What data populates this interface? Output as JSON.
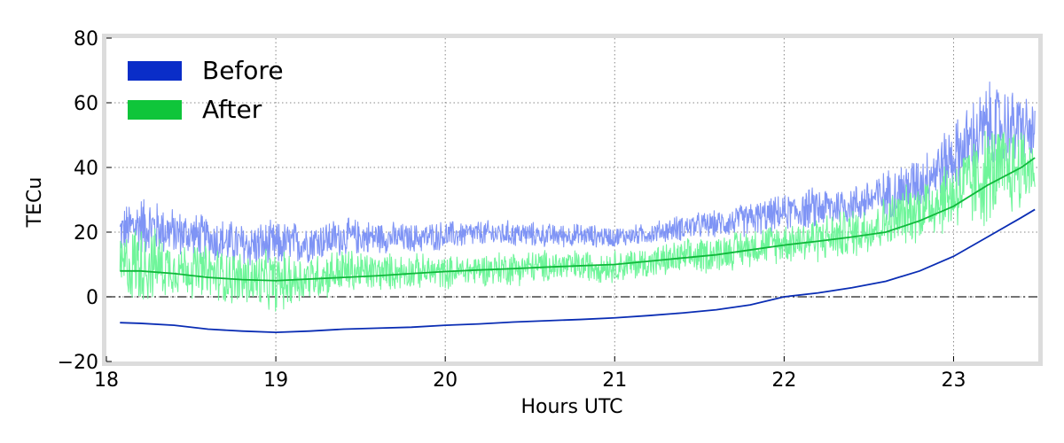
{
  "chart_data": {
    "type": "line",
    "title": "",
    "xlabel": "Hours UTC",
    "ylabel": "TECu",
    "xlim": [
      18,
      23.5
    ],
    "ylim": [
      -20,
      80
    ],
    "xticks": [
      18,
      19,
      20,
      21,
      22,
      23
    ],
    "yticks": [
      -20,
      0,
      20,
      40,
      60,
      80
    ],
    "xtick_labels": [
      "18",
      "19",
      "20",
      "21",
      "22",
      "23"
    ],
    "ytick_labels": [
      "−20",
      "0",
      "20",
      "40",
      "60",
      "80"
    ],
    "grid": true,
    "legend_position": "top-left",
    "reference_line": {
      "y": 0,
      "style": "dash-dot"
    },
    "colors": {
      "before_line": "#0a2db4",
      "before_band": "#7f94f5",
      "after_line": "#0fb93a",
      "after_band": "#6ff59a",
      "legend_before": "#0a2dc8",
      "legend_after": "#0fc53a",
      "frame": "#dcdcdc"
    },
    "series": [
      {
        "name": "Before",
        "color": "#0a2db4",
        "x": [
          18.08,
          18.2,
          18.4,
          18.6,
          18.8,
          19.0,
          19.2,
          19.4,
          19.6,
          19.8,
          20.0,
          20.2,
          20.4,
          20.6,
          20.8,
          21.0,
          21.2,
          21.4,
          21.6,
          21.8,
          22.0,
          22.2,
          22.4,
          22.6,
          22.8,
          23.0,
          23.2,
          23.4,
          23.48
        ],
        "values": [
          -8,
          -8.2,
          -8.8,
          -10,
          -10.6,
          -11,
          -10.6,
          -10,
          -9.7,
          -9.4,
          -8.8,
          -8.4,
          -7.8,
          -7.4,
          -7,
          -6.5,
          -5.8,
          -5,
          -4,
          -2.5,
          0,
          1.2,
          2.8,
          4.8,
          8,
          12.5,
          18.5,
          24.5,
          27
        ]
      },
      {
        "name": "After",
        "color": "#0fb93a",
        "x": [
          18.08,
          18.2,
          18.4,
          18.6,
          18.8,
          19.0,
          19.2,
          19.4,
          19.6,
          19.8,
          20.0,
          20.2,
          20.4,
          20.6,
          20.8,
          21.0,
          21.2,
          21.4,
          21.6,
          21.8,
          22.0,
          22.2,
          22.4,
          22.6,
          22.8,
          23.0,
          23.2,
          23.4,
          23.48
        ],
        "values": [
          8,
          8,
          7.2,
          6,
          5.3,
          5,
          5.5,
          6,
          6.5,
          7.2,
          7.8,
          8.3,
          8.7,
          9.2,
          9.6,
          10,
          11,
          12,
          13,
          14.5,
          16,
          17.2,
          18.5,
          20,
          23.5,
          28,
          34.5,
          40,
          43
        ]
      }
    ],
    "bands": [
      {
        "name": "Before",
        "color": "#7f94f5",
        "x": [
          18.08,
          18.2,
          18.4,
          18.6,
          18.8,
          19.0,
          19.2,
          19.4,
          19.6,
          19.8,
          20.0,
          20.2,
          20.4,
          20.6,
          20.8,
          21.0,
          21.2,
          21.4,
          21.6,
          21.8,
          22.0,
          22.2,
          22.4,
          22.6,
          22.8,
          23.0,
          23.2,
          23.4,
          23.48
        ],
        "lower": [
          12,
          12,
          12,
          10,
          8,
          8,
          10,
          12,
          13,
          13,
          14,
          15,
          15,
          15,
          15,
          15,
          16,
          17,
          18,
          18,
          20,
          20,
          22,
          23,
          26,
          32,
          36,
          40,
          40
        ],
        "upper": [
          28,
          33,
          28,
          26,
          24,
          24,
          24,
          25,
          24,
          23,
          24,
          24,
          24,
          23,
          23,
          22,
          23,
          26,
          27,
          30,
          32,
          35,
          35,
          40,
          45,
          55,
          68,
          65,
          60
        ]
      },
      {
        "name": "After",
        "color": "#6ff59a",
        "x": [
          18.08,
          18.2,
          18.4,
          18.6,
          18.8,
          19.0,
          19.2,
          19.4,
          19.6,
          19.8,
          20.0,
          20.2,
          20.4,
          20.6,
          20.8,
          21.0,
          21.2,
          21.4,
          21.6,
          21.8,
          22.0,
          22.2,
          22.4,
          22.6,
          22.8,
          23.0,
          23.2,
          23.4,
          23.48
        ],
        "lower": [
          -2,
          -4,
          0,
          -2,
          -4,
          -6,
          -2,
          0,
          1,
          2,
          2,
          3,
          3,
          4,
          4,
          4,
          5,
          6,
          7,
          9,
          10,
          10,
          11,
          14,
          16,
          19,
          20,
          25,
          30
        ],
        "upper": [
          20,
          25,
          18,
          17,
          15,
          15,
          14,
          16,
          14,
          14,
          13,
          14,
          15,
          15,
          15,
          15,
          16,
          18,
          20,
          22,
          24,
          26,
          28,
          32,
          38,
          45,
          55,
          55,
          50
        ]
      }
    ]
  },
  "legend": {
    "items": [
      {
        "label": "Before",
        "color": "#0a2dc8"
      },
      {
        "label": "After",
        "color": "#0fc53a"
      }
    ]
  }
}
